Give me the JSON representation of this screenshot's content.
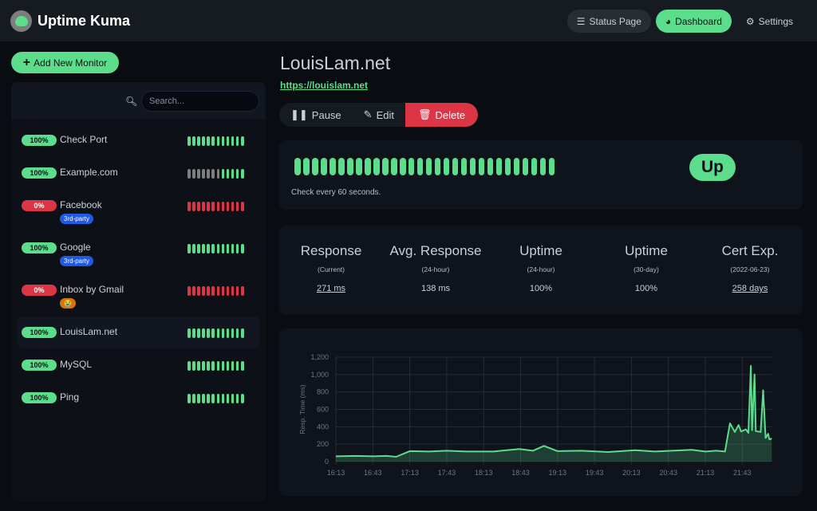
{
  "app": {
    "title": "Uptime Kuma"
  },
  "nav": {
    "status_page": "Status Page",
    "dashboard": "Dashboard",
    "settings": "Settings"
  },
  "sidebar": {
    "add_button": "Add New Monitor",
    "search_placeholder": "Search...",
    "monitors": [
      {
        "name": "Check Port",
        "uptime": "100%",
        "status": "up",
        "beats": [
          "up",
          "up",
          "up",
          "up",
          "up",
          "up",
          "up",
          "up",
          "up",
          "up",
          "up",
          "up"
        ]
      },
      {
        "name": "Example.com",
        "uptime": "100%",
        "status": "up",
        "beats": [
          "empty",
          "empty",
          "empty",
          "empty",
          "empty",
          "empty",
          "empty",
          "up",
          "up",
          "up",
          "up",
          "up"
        ]
      },
      {
        "name": "Facebook",
        "uptime": "0%",
        "status": "down",
        "tag": "3rd-party",
        "tag_color": "#1f5ae6",
        "beats": [
          "down",
          "down",
          "down",
          "down",
          "down",
          "down",
          "down",
          "down",
          "down",
          "down",
          "down",
          "down"
        ]
      },
      {
        "name": "Google",
        "uptime": "100%",
        "status": "up",
        "tag": "3rd-party",
        "tag_color": "#1f5ae6",
        "beats": [
          "up",
          "up",
          "up",
          "up",
          "up",
          "up",
          "up",
          "up",
          "up",
          "up",
          "up",
          "up"
        ]
      },
      {
        "name": "Inbox by Gmail",
        "uptime": "0%",
        "status": "down",
        "tag": "😭",
        "tag_color": "#d9730d",
        "beats": [
          "down",
          "down",
          "down",
          "down",
          "down",
          "down",
          "down",
          "down",
          "down",
          "down",
          "down",
          "down"
        ]
      },
      {
        "name": "LouisLam.net",
        "uptime": "100%",
        "status": "up",
        "active": true,
        "beats": [
          "up",
          "up",
          "up",
          "up",
          "up",
          "up",
          "up",
          "up",
          "up",
          "up",
          "up",
          "up"
        ]
      },
      {
        "name": "MySQL",
        "uptime": "100%",
        "status": "up",
        "beats": [
          "up",
          "up",
          "up",
          "up",
          "up",
          "up",
          "up",
          "up",
          "up",
          "up",
          "up",
          "up"
        ]
      },
      {
        "name": "Ping",
        "uptime": "100%",
        "status": "up",
        "beats": [
          "up",
          "up",
          "up",
          "up",
          "up",
          "up",
          "up",
          "up",
          "up",
          "up",
          "up",
          "up"
        ]
      }
    ]
  },
  "monitor": {
    "title": "LouisLam.net",
    "url": "https://louislam.net",
    "actions": {
      "pause": "Pause",
      "edit": "Edit",
      "delete": "Delete"
    },
    "heartbeat_count": 30,
    "status": "Up",
    "check_text": "Check every 60 seconds.",
    "stats": [
      {
        "title": "Response",
        "sub": "(Current)",
        "value": "271 ms",
        "link": true
      },
      {
        "title": "Avg. Response",
        "sub": "(24-hour)",
        "value": "138 ms",
        "link": false
      },
      {
        "title": "Uptime",
        "sub": "(24-hour)",
        "value": "100%",
        "link": false
      },
      {
        "title": "Uptime",
        "sub": "(30-day)",
        "value": "100%",
        "link": false
      },
      {
        "title": "Cert Exp.",
        "sub": "(2022-06-23)",
        "value": "258 days",
        "link": true
      }
    ]
  },
  "colors": {
    "up": "#5cdd8b",
    "down": "#dc3545",
    "empty": "#7d7d7d",
    "accent": "#5cdd8b"
  },
  "chart_data": {
    "type": "area",
    "ylabel": "Resp. Time (ms)",
    "ylim": [
      0,
      1200
    ],
    "yticks": [
      "0",
      "200",
      "400",
      "600",
      "800",
      "1,000",
      "1,200"
    ],
    "xticks": [
      "16:13",
      "16:43",
      "17:13",
      "17:43",
      "18:13",
      "18:43",
      "19:13",
      "19:43",
      "20:13",
      "20:43",
      "21:13",
      "21:43"
    ],
    "grid": true,
    "x": [
      "16:13",
      "16:29",
      "16:43",
      "16:54",
      "17:02",
      "17:13",
      "17:29",
      "17:43",
      "17:59",
      "18:21",
      "18:42",
      "18:53",
      "19:02",
      "19:13",
      "19:32",
      "19:54",
      "20:16",
      "20:32",
      "21:02",
      "21:13",
      "21:22",
      "21:29",
      "21:33",
      "21:37",
      "21:40",
      "21:42",
      "21:46",
      "21:48",
      "21:50",
      "21:51",
      "21:53",
      "21:54",
      "21:58",
      "22:00",
      "22:02",
      "22:04",
      "22:05",
      "22:07"
    ],
    "values": [
      60,
      65,
      60,
      65,
      55,
      120,
      115,
      125,
      115,
      115,
      145,
      125,
      180,
      120,
      125,
      110,
      130,
      115,
      135,
      115,
      125,
      115,
      440,
      340,
      420,
      345,
      370,
      330,
      1100,
      360,
      1000,
      350,
      340,
      820,
      270,
      320,
      255,
      265
    ]
  }
}
